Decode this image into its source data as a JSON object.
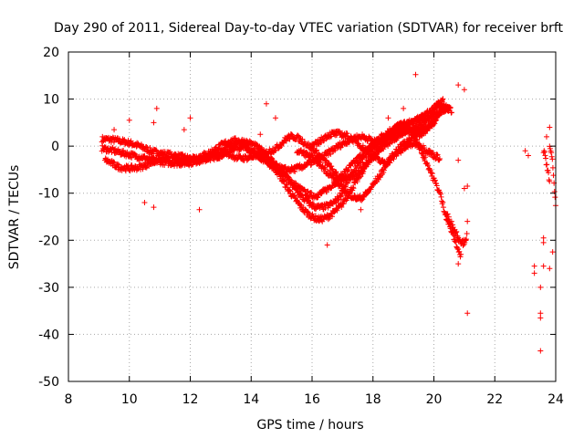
{
  "chart_data": {
    "type": "scatter",
    "title": "Day 290 of 2011, Sidereal Day-to-day VTEC variation (SDTVAR) for receiver brft",
    "xlabel": "GPS time / hours",
    "ylabel": "SDTVAR / TECUs",
    "xlim": [
      8,
      24
    ],
    "ylim": [
      -50,
      20
    ],
    "xticks": [
      "8",
      "10",
      "12",
      "14",
      "16",
      "18",
      "20",
      "22",
      "24"
    ],
    "yticks": [
      "20",
      "10",
      "0",
      "-10",
      "-20",
      "-30",
      "-40",
      "-50"
    ],
    "marker": "+",
    "color": "#ff0000",
    "grid": true,
    "series": [
      {
        "name": "SDTVAR",
        "tracks": [
          [
            [
              9.1,
              1.5
            ],
            [
              9.6,
              1.2
            ],
            [
              10.2,
              0.3
            ],
            [
              10.8,
              -1.2
            ],
            [
              11.5,
              -2.0
            ],
            [
              12.3,
              -2.8
            ],
            [
              13.0,
              -2.0
            ],
            [
              13.6,
              -0.2
            ],
            [
              14.3,
              -2.5
            ],
            [
              15.0,
              -5.5
            ],
            [
              15.6,
              -9.0
            ],
            [
              16.1,
              -10.5
            ],
            [
              16.7,
              -8.0
            ],
            [
              17.3,
              -4.0
            ],
            [
              18.0,
              0.5
            ],
            [
              18.6,
              3.5
            ],
            [
              19.2,
              5.0
            ],
            [
              19.8,
              6.0
            ],
            [
              20.2,
              9.0
            ],
            [
              20.6,
              7.5
            ]
          ],
          [
            [
              9.1,
              -0.5
            ],
            [
              9.8,
              -1.5
            ],
            [
              10.5,
              -2.5
            ],
            [
              11.2,
              -3.5
            ],
            [
              12.0,
              -3.5
            ],
            [
              12.8,
              -2.0
            ],
            [
              13.5,
              0.5
            ],
            [
              14.1,
              -1.5
            ],
            [
              14.8,
              -5.0
            ],
            [
              15.3,
              -10.0
            ],
            [
              15.8,
              -14.0
            ],
            [
              16.3,
              -15.5
            ],
            [
              16.9,
              -13.0
            ],
            [
              17.4,
              -8.0
            ],
            [
              18.0,
              -2.0
            ],
            [
              18.5,
              1.5
            ],
            [
              19.0,
              3.5
            ],
            [
              19.5,
              2.5
            ],
            [
              20.0,
              5.0
            ],
            [
              20.3,
              8.5
            ]
          ],
          [
            [
              9.2,
              -3.0
            ],
            [
              9.7,
              -4.5
            ],
            [
              10.3,
              -4.5
            ],
            [
              11.0,
              -3.0
            ],
            [
              11.8,
              -3.0
            ],
            [
              12.6,
              -1.5
            ],
            [
              13.3,
              1.0
            ],
            [
              14.0,
              0.5
            ],
            [
              14.6,
              -2.5
            ],
            [
              15.2,
              -7.0
            ],
            [
              15.7,
              -11.0
            ],
            [
              16.2,
              -13.0
            ],
            [
              16.8,
              -11.5
            ],
            [
              17.3,
              -6.0
            ],
            [
              17.9,
              -1.0
            ],
            [
              18.5,
              2.0
            ],
            [
              19.2,
              3.5
            ],
            [
              19.8,
              4.0
            ],
            [
              20.4,
              8.0
            ]
          ],
          [
            [
              13.0,
              -1.0
            ],
            [
              13.6,
              -2.5
            ],
            [
              14.2,
              -2.0
            ],
            [
              14.8,
              -0.5
            ],
            [
              15.3,
              2.0
            ],
            [
              15.8,
              0.5
            ],
            [
              16.4,
              -3.0
            ],
            [
              17.0,
              -7.0
            ],
            [
              17.6,
              -5.0
            ],
            [
              18.2,
              -1.0
            ],
            [
              18.8,
              2.0
            ],
            [
              19.4,
              4.0
            ],
            [
              20.0,
              6.5
            ],
            [
              20.5,
              8.0
            ]
          ],
          [
            [
              14.5,
              -3.5
            ],
            [
              15.2,
              -5.0
            ],
            [
              15.8,
              -4.0
            ],
            [
              16.4,
              -2.0
            ],
            [
              17.0,
              0.5
            ],
            [
              17.6,
              2.0
            ],
            [
              18.2,
              1.0
            ],
            [
              18.8,
              4.0
            ],
            [
              19.4,
              5.5
            ],
            [
              20.0,
              8.0
            ],
            [
              20.3,
              9.5
            ]
          ],
          [
            [
              15.5,
              -1.0
            ],
            [
              16.0,
              -2.5
            ],
            [
              16.5,
              -5.5
            ],
            [
              17.1,
              -9.5
            ],
            [
              17.6,
              -11.0
            ],
            [
              18.2,
              -6.5
            ],
            [
              18.7,
              -1.5
            ],
            [
              19.2,
              1.5
            ],
            [
              19.7,
              4.0
            ]
          ],
          [
            [
              16.0,
              0.0
            ],
            [
              16.6,
              2.5
            ],
            [
              17.2,
              2.0
            ],
            [
              17.8,
              -1.0
            ],
            [
              18.4,
              -3.5
            ],
            [
              18.9,
              -1.0
            ],
            [
              19.4,
              0.5
            ],
            [
              19.9,
              -1.5
            ],
            [
              20.2,
              -2.5
            ]
          ],
          [
            [
              18.8,
              4.5
            ],
            [
              19.3,
              2.5
            ],
            [
              19.8,
              -4.0
            ],
            [
              20.2,
              -10.0
            ],
            [
              20.4,
              -15.0
            ],
            [
              20.7,
              -20.0
            ],
            [
              20.9,
              -23.5
            ]
          ],
          [
            [
              20.4,
              -14.5
            ],
            [
              20.7,
              -18.0
            ],
            [
              20.95,
              -20.5
            ],
            [
              21.1,
              -19.0
            ]
          ],
          [
            [
              23.8,
              -0.5
            ],
            [
              23.9,
              -3.5
            ],
            [
              23.95,
              -8.0
            ],
            [
              24.0,
              -13.0
            ]
          ],
          [
            [
              23.6,
              -1.0
            ],
            [
              23.7,
              -4.0
            ],
            [
              23.8,
              -7.0
            ]
          ]
        ],
        "scattered": [
          [
            10.9,
            8.0
          ],
          [
            12.0,
            6.0
          ],
          [
            14.5,
            9.0
          ],
          [
            14.8,
            6.0
          ],
          [
            19.4,
            15.2
          ],
          [
            20.8,
            13.0
          ],
          [
            21.0,
            12.0
          ],
          [
            19.0,
            8.0
          ],
          [
            17.8,
            -10.0
          ],
          [
            17.6,
            -13.5
          ],
          [
            16.5,
            -21.0
          ],
          [
            20.8,
            -25.0
          ],
          [
            21.1,
            -35.5
          ],
          [
            21.1,
            -16.0
          ],
          [
            23.5,
            -43.5
          ],
          [
            23.5,
            -35.5
          ],
          [
            23.5,
            -36.5
          ],
          [
            23.5,
            -30.0
          ],
          [
            23.3,
            -27.0
          ],
          [
            23.3,
            -25.5
          ],
          [
            23.6,
            -25.5
          ],
          [
            23.6,
            -19.5
          ],
          [
            23.6,
            -20.5
          ],
          [
            23.9,
            -22.5
          ],
          [
            23.8,
            -26.0
          ],
          [
            23.8,
            4.0
          ],
          [
            23.7,
            2.0
          ],
          [
            23.1,
            -2.0
          ],
          [
            23.0,
            -1.0
          ],
          [
            10.5,
            -12.0
          ],
          [
            10.8,
            -13.0
          ],
          [
            12.3,
            -13.5
          ],
          [
            10.0,
            5.5
          ],
          [
            11.8,
            3.5
          ],
          [
            14.3,
            2.5
          ],
          [
            15.3,
            -5.0
          ],
          [
            21.0,
            -9.0
          ],
          [
            20.8,
            -3.0
          ],
          [
            9.5,
            3.5
          ],
          [
            10.8,
            5.0
          ],
          [
            18.5,
            6.0
          ],
          [
            21.1,
            -8.5
          ]
        ]
      }
    ]
  }
}
